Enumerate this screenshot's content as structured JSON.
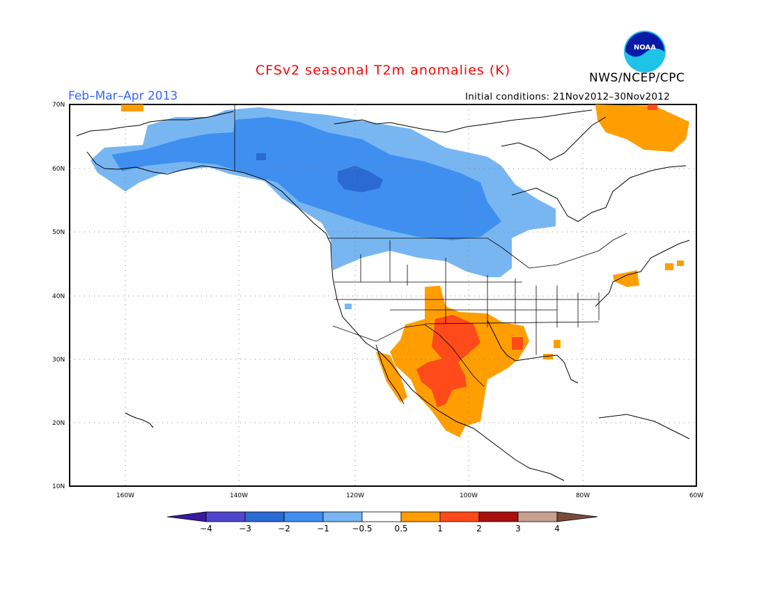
{
  "header": {
    "title": "CFSv2 seasonal T2m anomalies (K)",
    "period": "Feb–Mar–Apr 2013",
    "initial_conditions": "Initial conditions: 21Nov2012–30Nov2012",
    "agency": "NWS/NCEP/CPC",
    "logo_text": "NOAA"
  },
  "map": {
    "lat_labels": [
      "70N",
      "60N",
      "50N",
      "40N",
      "30N",
      "20N",
      "10N"
    ],
    "lon_labels": [
      "160W",
      "140W",
      "120W",
      "100W",
      "80W",
      "60W"
    ],
    "grid": true
  },
  "colorbar": {
    "labels": [
      "−4",
      "−3",
      "−2",
      "−1",
      "−0.5",
      "0.5",
      "1",
      "2",
      "3",
      "4"
    ],
    "colors": [
      "#3a1aa0",
      "#5046cc",
      "#2a6ad2",
      "#3f8ff0",
      "#78b6f2",
      "#ffffff",
      "#ff9e00",
      "#ff4a1a",
      "#a80f0f",
      "#c8a090",
      "#7a4a38"
    ]
  }
}
